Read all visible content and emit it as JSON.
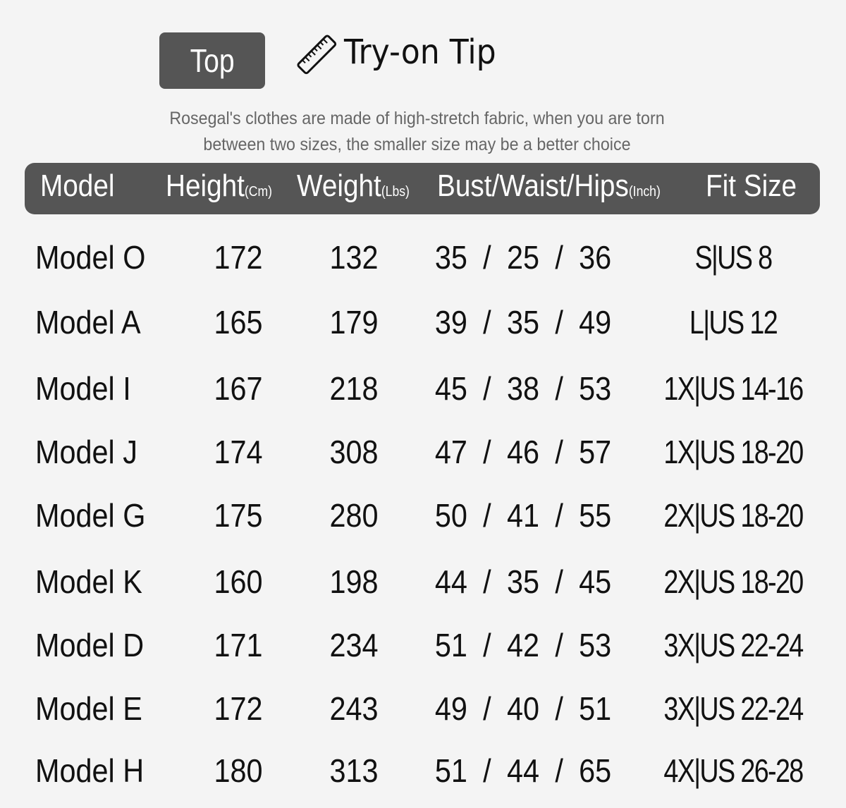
{
  "badge": "Top",
  "tip": {
    "icon": "ruler-icon",
    "title": "Try-on Tip"
  },
  "note": [
    "Rosegal's clothes are made of high-stretch fabric, when you are torn",
    "between two sizes, the smaller size may be a better choice"
  ],
  "colors": {
    "header_bg": "#555555",
    "page_bg": "#f4f4f4"
  },
  "columns": [
    {
      "label": "Model",
      "unit": ""
    },
    {
      "label": "Height",
      "unit": "(Cm)"
    },
    {
      "label": "Weight",
      "unit": "(Lbs)"
    },
    {
      "label": "Bust/Waist/Hips",
      "unit": "(Inch)"
    },
    {
      "label": "Fit Size",
      "unit": ""
    }
  ],
  "rows": [
    {
      "model": "Model O",
      "height": "172",
      "weight": "132",
      "bwh": "35 / 25 / 36",
      "fit": "S|US 8"
    },
    {
      "model": "Model A",
      "height": "165",
      "weight": "179",
      "bwh": "39 / 35 / 49",
      "fit": "L|US 12"
    },
    {
      "model": "Model I",
      "height": "167",
      "weight": "218",
      "bwh": "45 / 38 / 53",
      "fit": "1X|US 14-16"
    },
    {
      "model": "Model J",
      "height": "174",
      "weight": "308",
      "bwh": "47 / 46 / 57",
      "fit": "1X|US 18-20"
    },
    {
      "model": "Model G",
      "height": "175",
      "weight": "280",
      "bwh": "50 / 41 / 55",
      "fit": "2X|US 18-20"
    },
    {
      "model": "Model K",
      "height": "160",
      "weight": "198",
      "bwh": "44 / 35 / 45",
      "fit": "2X|US 18-20"
    },
    {
      "model": "Model D",
      "height": "171",
      "weight": "234",
      "bwh": "51 / 42 / 53",
      "fit": "3X|US 22-24"
    },
    {
      "model": "Model E",
      "height": "172",
      "weight": "243",
      "bwh": "49 / 40 / 51",
      "fit": "3X|US 22-24"
    },
    {
      "model": "Model H",
      "height": "180",
      "weight": "313",
      "bwh": "51 / 44 / 65",
      "fit": "4X|US 26-28"
    }
  ]
}
